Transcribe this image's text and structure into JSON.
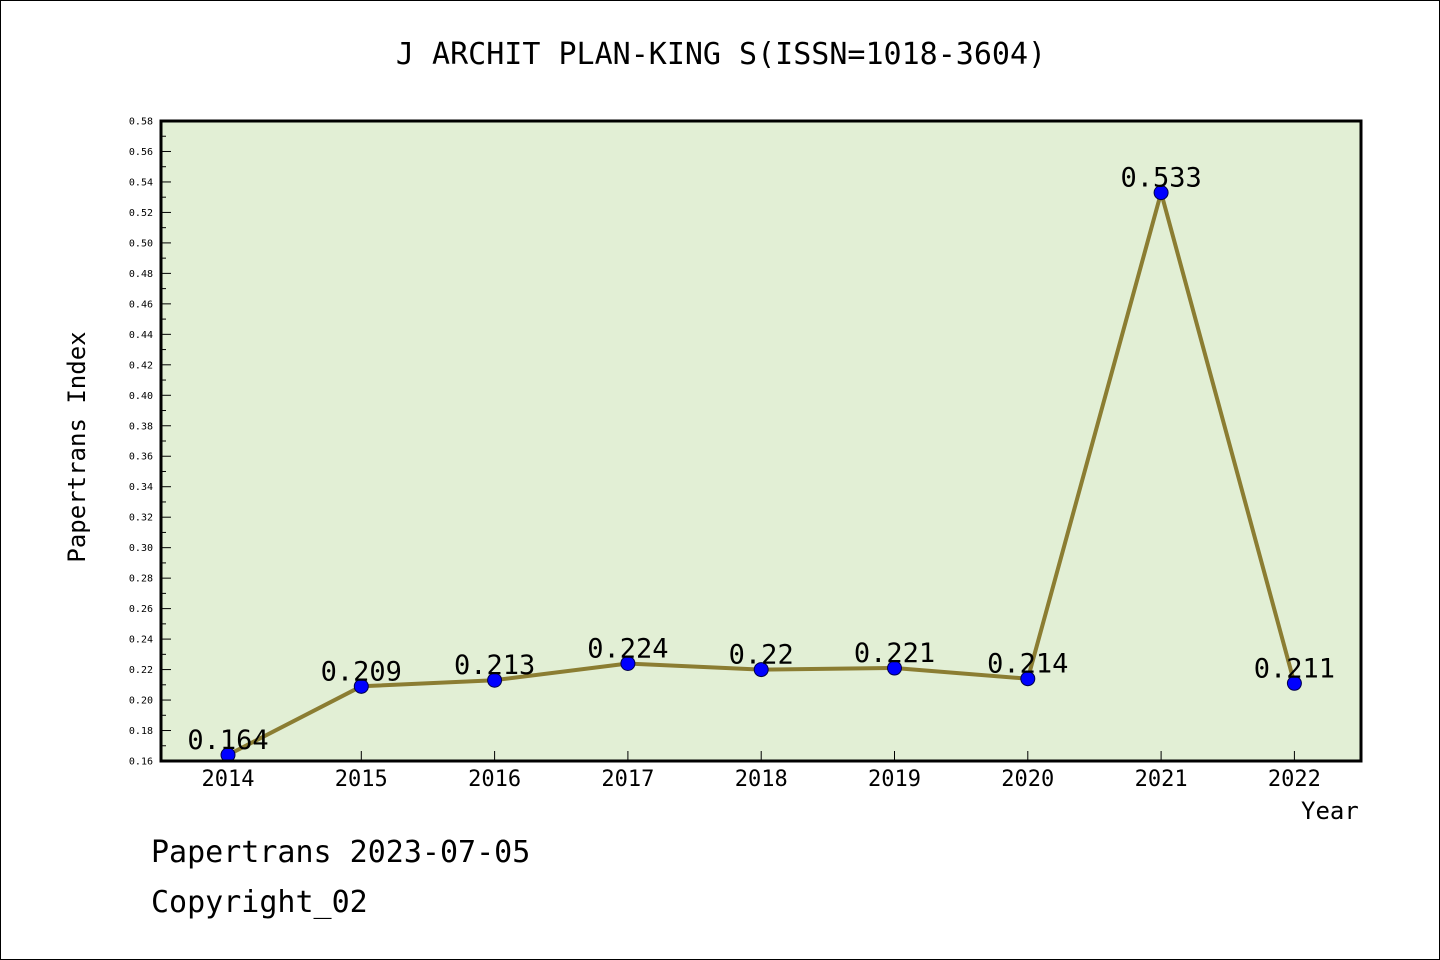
{
  "chart_data": {
    "type": "line",
    "title": "J ARCHIT PLAN-KING S(ISSN=1018-3604)",
    "xlabel": "Year",
    "ylabel": "Papertrans Index",
    "categories": [
      "2014",
      "2015",
      "2016",
      "2017",
      "2018",
      "2019",
      "2020",
      "2021",
      "2022"
    ],
    "series": [
      {
        "values": [
          0.164,
          0.209,
          0.213,
          0.224,
          0.22,
          0.221,
          0.214,
          0.533,
          0.211
        ],
        "labels": [
          "0.164",
          "0.209",
          "0.213",
          "0.224",
          "0.22",
          "0.221",
          "0.214",
          "0.533",
          "0.211"
        ]
      }
    ],
    "ylim": [
      0.16,
      0.58
    ],
    "ytick_step": 0.02,
    "yticks": [
      "0.16",
      "0.18",
      "0.20",
      "0.22",
      "0.24",
      "0.26",
      "0.28",
      "0.30",
      "0.32",
      "0.34",
      "0.36",
      "0.38",
      "0.40",
      "0.42",
      "0.44",
      "0.46",
      "0.48",
      "0.50",
      "0.52",
      "0.54",
      "0.56",
      "0.58"
    ],
    "grid": false,
    "colors": {
      "plot_background": "#e2efd5",
      "line": "#8b7d32",
      "marker": "#0000ff",
      "frame": "#000000"
    }
  },
  "footer": {
    "date_text": "Papertrans 2023-07-05",
    "copyright_text": "Copyright_02"
  }
}
